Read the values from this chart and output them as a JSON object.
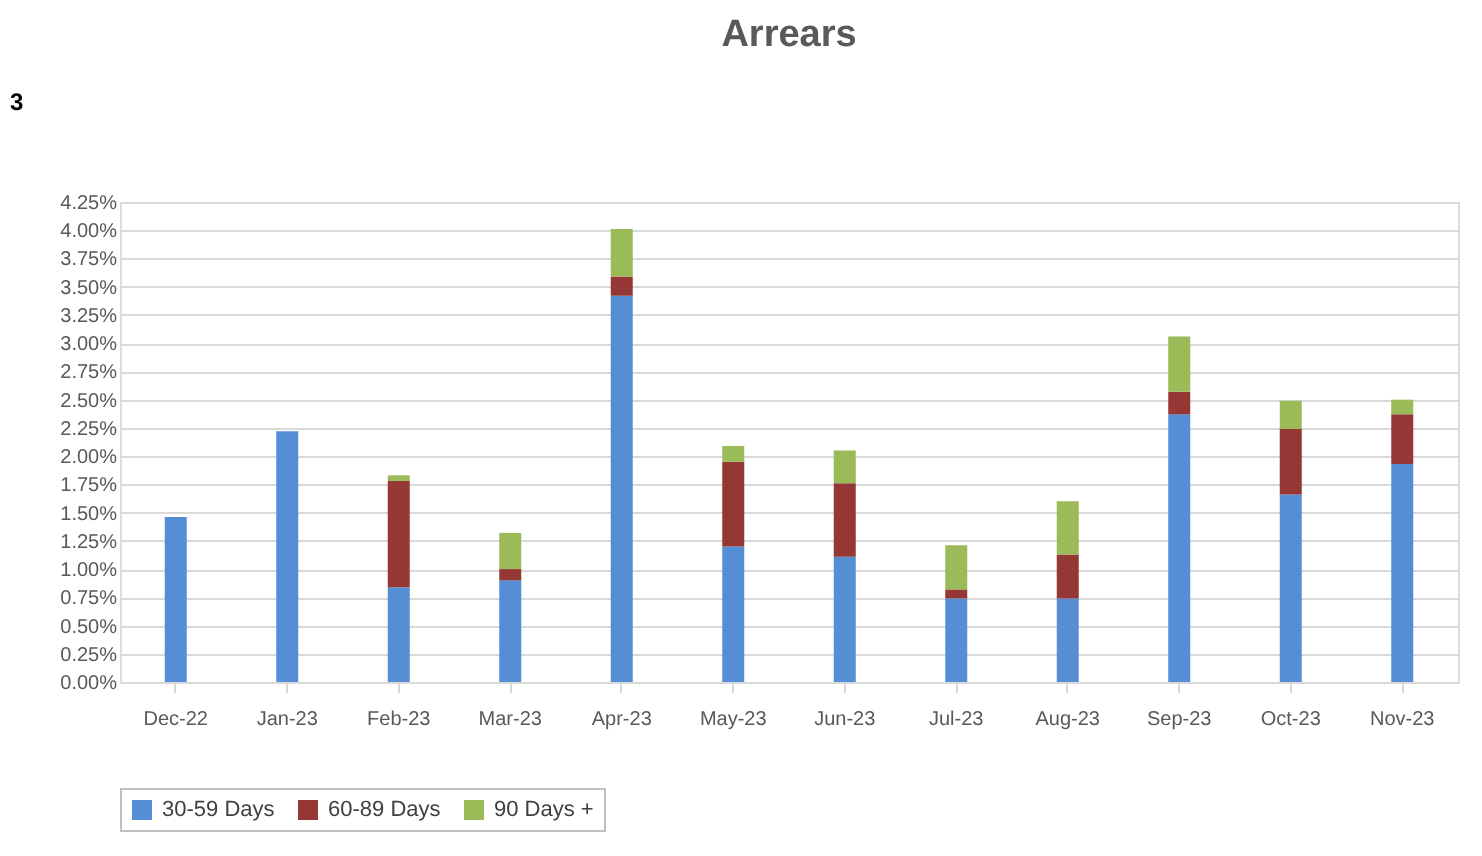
{
  "chart_data": {
    "type": "bar",
    "title": "Arrears",
    "stacked": true,
    "categories": [
      "Dec-22",
      "Jan-23",
      "Feb-23",
      "Mar-23",
      "Apr-23",
      "May-23",
      "Jun-23",
      "Jul-23",
      "Aug-23",
      "Sep-23",
      "Oct-23",
      "Nov-23"
    ],
    "series": [
      {
        "name": "30-59 Days",
        "color": "#558ed5",
        "values": [
          1.46,
          2.22,
          0.84,
          0.9,
          3.42,
          1.2,
          1.11,
          0.74,
          0.74,
          2.37,
          1.66,
          1.93
        ]
      },
      {
        "name": "60-89 Days",
        "color": "#953735",
        "values": [
          null,
          null,
          0.94,
          0.1,
          0.17,
          0.75,
          0.65,
          0.08,
          0.39,
          0.2,
          0.58,
          0.44
        ]
      },
      {
        "name": "90 Days +",
        "color": "#9bbb59",
        "values": [
          null,
          null,
          0.05,
          0.32,
          0.42,
          0.14,
          0.29,
          0.39,
          0.47,
          0.49,
          0.25,
          0.13
        ]
      }
    ],
    "ylim": [
      0,
      4.25
    ],
    "yticks": [
      {
        "value": 0,
        "label": "0.00%"
      },
      {
        "value": 0.25,
        "label": "0.25%"
      },
      {
        "value": 0.5,
        "label": "0.50%"
      },
      {
        "value": 0.75,
        "label": "0.75%"
      },
      {
        "value": 1,
        "label": "1.00%"
      },
      {
        "value": 1.25,
        "label": "1.25%"
      },
      {
        "value": 1.5,
        "label": "1.50%"
      },
      {
        "value": 1.75,
        "label": "1.75%"
      },
      {
        "value": 2,
        "label": "2.00%"
      },
      {
        "value": 2.25,
        "label": "2.25%"
      },
      {
        "value": 2.5,
        "label": "2.50%"
      },
      {
        "value": 2.75,
        "label": "2.75%"
      },
      {
        "value": 3,
        "label": "3.00%"
      },
      {
        "value": 3.25,
        "label": "3.25%"
      },
      {
        "value": 3.5,
        "label": "3.50%"
      },
      {
        "value": 3.75,
        "label": "3.75%"
      },
      {
        "value": 4,
        "label": "4.00%"
      },
      {
        "value": 4.25,
        "label": "4.25%"
      }
    ],
    "grid": "y",
    "legend": "bottom",
    "annotations": [
      "3"
    ]
  }
}
